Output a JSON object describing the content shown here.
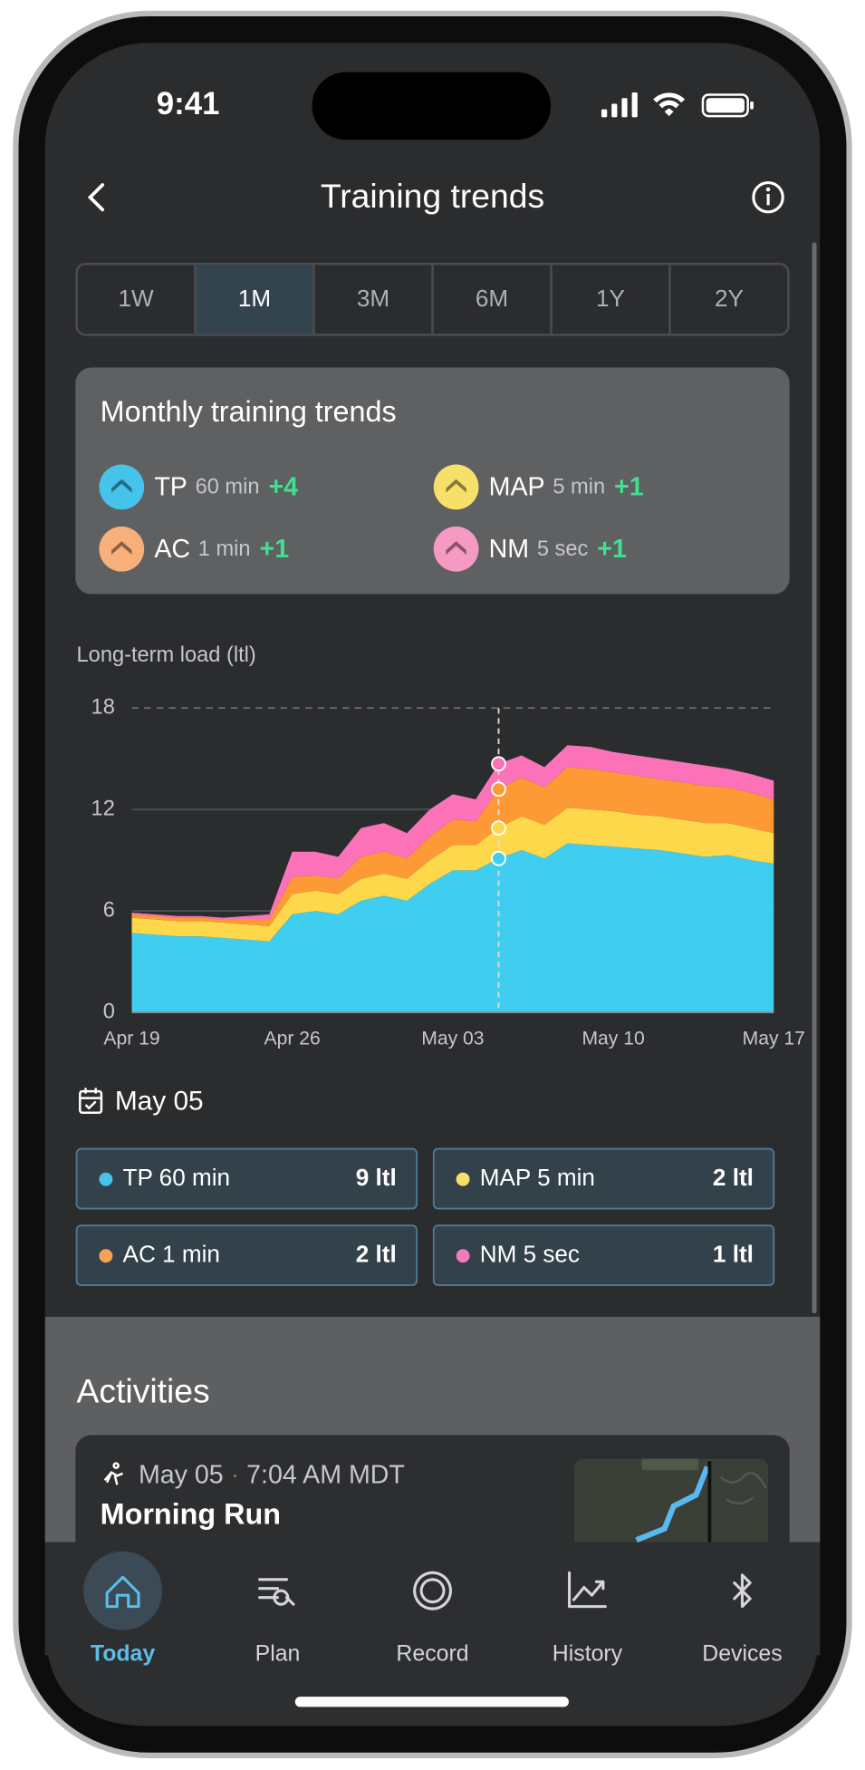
{
  "status_bar": {
    "time": "9:41"
  },
  "header": {
    "title": "Training trends"
  },
  "tabs": [
    "1W",
    "1M",
    "3M",
    "6M",
    "1Y",
    "2Y"
  ],
  "selected_tab": 1,
  "summary": {
    "title": "Monthly training trends",
    "items": [
      {
        "name": "TP",
        "window": "60 min",
        "change": "+4",
        "color": "#45c3ea"
      },
      {
        "name": "MAP",
        "window": "5 min",
        "change": "+1",
        "color": "#f6e06a"
      },
      {
        "name": "AC",
        "window": "1 min",
        "change": "+1",
        "color": "#f7b07a"
      },
      {
        "name": "NM",
        "window": "5 sec",
        "change": "+1",
        "color": "#f59ac3"
      }
    ]
  },
  "chart_data": {
    "type": "area",
    "y_label": "Long-term load (ltl)",
    "x": [
      0,
      1,
      2,
      3,
      4,
      5,
      6,
      7,
      8,
      9,
      10,
      11,
      12,
      13,
      14,
      15,
      16,
      17,
      18,
      19,
      20,
      21,
      22,
      23,
      24,
      25,
      26,
      27,
      28
    ],
    "xlim": [
      0,
      28
    ],
    "xticks": [
      {
        "value": 0,
        "label": "Apr 19"
      },
      {
        "value": 7,
        "label": "Apr 26"
      },
      {
        "value": 14,
        "label": "May 03"
      },
      {
        "value": 21,
        "label": "May 10"
      },
      {
        "value": 28,
        "label": "May 17"
      }
    ],
    "ylim": [
      0,
      18
    ],
    "yticks": [
      0,
      6,
      12,
      18
    ],
    "selected_x": 16,
    "series": [
      {
        "name": "TP 60 min",
        "color": "#3fcdf0",
        "values": [
          4.7,
          4.6,
          4.5,
          4.5,
          4.4,
          4.3,
          4.2,
          5.8,
          6.0,
          5.8,
          6.6,
          6.9,
          6.6,
          7.6,
          8.4,
          8.4,
          9.1,
          9.6,
          9.1,
          10.0,
          9.9,
          9.8,
          9.7,
          9.6,
          9.4,
          9.2,
          9.3,
          9.0,
          8.8
        ]
      },
      {
        "name": "MAP 5 min",
        "color": "#fcd84a",
        "values": [
          0.9,
          0.9,
          0.9,
          0.9,
          0.9,
          0.9,
          0.9,
          1.2,
          1.2,
          1.2,
          1.3,
          1.3,
          1.3,
          1.4,
          1.5,
          1.5,
          1.8,
          2.0,
          2.0,
          2.1,
          2.1,
          2.1,
          2.0,
          2.0,
          2.0,
          2.0,
          1.9,
          1.9,
          1.8
        ]
      },
      {
        "name": "AC 1 min",
        "color": "#fd9a35",
        "values": [
          0.2,
          0.2,
          0.2,
          0.2,
          0.2,
          0.3,
          0.4,
          1.0,
          0.9,
          0.9,
          1.3,
          1.3,
          1.2,
          1.4,
          1.5,
          1.4,
          2.3,
          2.3,
          2.2,
          2.4,
          2.4,
          2.3,
          2.3,
          2.2,
          2.2,
          2.2,
          2.1,
          2.1,
          2.0
        ]
      },
      {
        "name": "NM 5 sec",
        "color": "#fb72b8",
        "values": [
          0.1,
          0.1,
          0.1,
          0.1,
          0.1,
          0.2,
          0.3,
          1.5,
          1.4,
          1.3,
          1.7,
          1.7,
          1.5,
          1.6,
          1.5,
          1.3,
          1.5,
          1.3,
          1.2,
          1.3,
          1.3,
          1.2,
          1.2,
          1.2,
          1.2,
          1.2,
          1.1,
          1.1,
          1.1
        ]
      }
    ]
  },
  "detail": {
    "date": "May 05",
    "tiles": [
      {
        "label": "TP 60 min",
        "value": "9 ltl",
        "color": "#45c3ea"
      },
      {
        "label": "MAP 5 min",
        "value": "2 ltl",
        "color": "#f6e06a"
      },
      {
        "label": "AC 1 min",
        "value": "2 ltl",
        "color": "#f7a25a"
      },
      {
        "label": "NM 5 sec",
        "value": "1 ltl",
        "color": "#f27bbd"
      }
    ]
  },
  "activities": {
    "title": "Activities",
    "card": {
      "date": "May 05",
      "time": "7:04 AM MDT",
      "name": "Morning Run"
    }
  },
  "nav": [
    "Today",
    "Plan",
    "Record",
    "History",
    "Devices"
  ],
  "active_nav": 0
}
